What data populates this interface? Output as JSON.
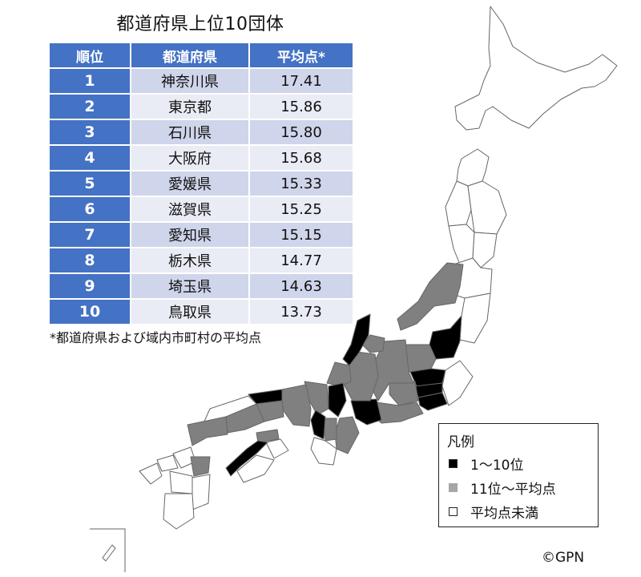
{
  "table": {
    "title": "都道府県上位10団体",
    "headers": [
      "順位",
      "都道府県",
      "平均点*"
    ],
    "rows": [
      {
        "rank": "1",
        "prefecture": "神奈川県",
        "score": "17.41"
      },
      {
        "rank": "2",
        "prefecture": "東京都",
        "score": "15.86"
      },
      {
        "rank": "3",
        "prefecture": "石川県",
        "score": "15.80"
      },
      {
        "rank": "4",
        "prefecture": "大阪府",
        "score": "15.68"
      },
      {
        "rank": "5",
        "prefecture": "愛媛県",
        "score": "15.33"
      },
      {
        "rank": "6",
        "prefecture": "滋賀県",
        "score": "15.25"
      },
      {
        "rank": "7",
        "prefecture": "愛知県",
        "score": "15.15"
      },
      {
        "rank": "8",
        "prefecture": "栃木県",
        "score": "14.77"
      },
      {
        "rank": "9",
        "prefecture": "埼玉県",
        "score": "14.63"
      },
      {
        "rank": "10",
        "prefecture": "鳥取県",
        "score": "13.73"
      }
    ],
    "footnote": "*都道府県および域内市町村の平均点"
  },
  "legend": {
    "title": "凡例",
    "items": [
      {
        "label": "1〜10位",
        "color": "#000000"
      },
      {
        "label": "11位〜平均点",
        "color": "#a6a6a6"
      },
      {
        "label": "平均点未満",
        "color": "#ffffff"
      }
    ]
  },
  "credit": "©GPN",
  "colors": {
    "header_blue": "#4472c4",
    "row_dark": "#cfd5ea",
    "row_light": "#e9ebf5",
    "map_top10": "#000000",
    "map_above_avg": "#808080",
    "map_below_avg": "#ffffff"
  }
}
